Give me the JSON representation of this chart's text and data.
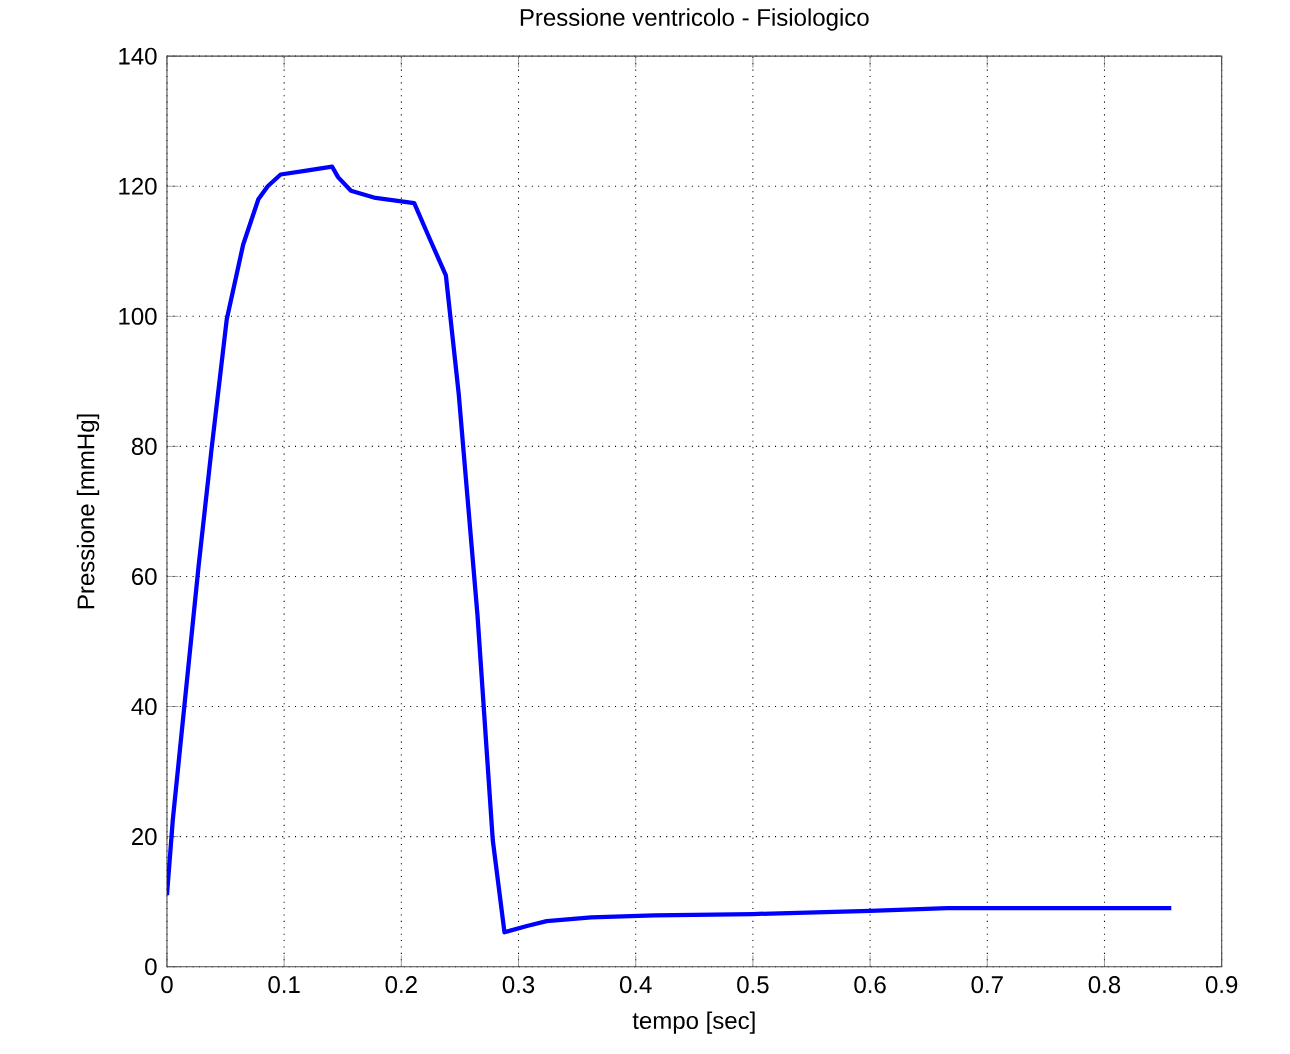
{
  "chart_data": {
    "type": "line",
    "title": "Pressione ventricolo - Fisiologico",
    "xlabel": "tempo [sec]",
    "ylabel": "Pressione [mmHg]",
    "series": [
      {
        "color": "#0000ff",
        "x": [
          0,
          0.005,
          0.027,
          0.038,
          0.051,
          0.065,
          0.078,
          0.086,
          0.097,
          0.119,
          0.141,
          0.146,
          0.157,
          0.178,
          0.211,
          0.224,
          0.238,
          0.249,
          0.265,
          0.278,
          0.288,
          0.308,
          0.324,
          0.362,
          0.416,
          0.5,
          0.6,
          0.666,
          0.75,
          0.857
        ],
        "values": [
          11,
          22.6,
          61.6,
          79.5,
          99.5,
          111,
          118,
          120,
          121.8,
          122.4,
          123,
          121.4,
          119.3,
          118.2,
          117.4,
          112,
          106.3,
          88,
          54,
          19.5,
          5.3,
          6.3,
          7,
          7.6,
          7.9,
          8.1,
          8.6,
          9,
          9,
          9
        ]
      }
    ],
    "xlim": [
      0,
      0.9
    ],
    "ylim": [
      0,
      140
    ],
    "xticks": [
      0,
      0.1,
      0.2,
      0.3,
      0.4,
      0.5,
      0.6,
      0.7,
      0.8,
      0.9
    ],
    "yticks": [
      0,
      20,
      40,
      60,
      80,
      100,
      120,
      140
    ],
    "grid": true,
    "line_style": "solid",
    "marker": "none"
  }
}
